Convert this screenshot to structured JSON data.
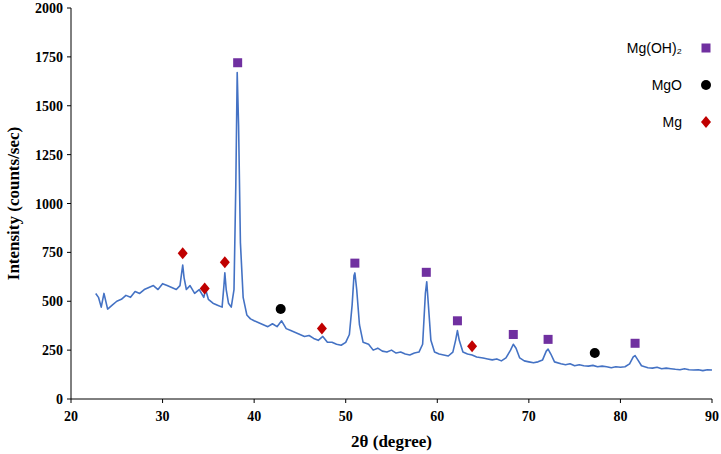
{
  "chart_data": {
    "type": "line",
    "x_label": "2θ (degree)",
    "y_label": "Intensity (counts/sec)",
    "xlim": [
      20,
      90
    ],
    "xticks": [
      20,
      30,
      40,
      50,
      60,
      70,
      80,
      90
    ],
    "ylim": [
      0,
      2000
    ],
    "yticks": [
      0,
      250,
      500,
      750,
      1000,
      1250,
      1500,
      1750,
      2000
    ],
    "grid": false,
    "legend": "top-right",
    "series": [
      {
        "type": "line",
        "color": "#4472c4",
        "line_style": "solid",
        "x": [
          22.7,
          23.0,
          23.3,
          23.6,
          24.0,
          24.5,
          25.0,
          25.5,
          26.0,
          26.5,
          27.0,
          27.5,
          28.0,
          28.5,
          29.0,
          29.5,
          30.0,
          30.5,
          31.0,
          31.5,
          31.9,
          32.1,
          32.2,
          32.35,
          32.6,
          33.0,
          33.5,
          34.0,
          34.5,
          34.7,
          35.0,
          35.5,
          36.0,
          36.5,
          36.7,
          36.8,
          36.95,
          37.2,
          37.5,
          37.8,
          38.0,
          38.15,
          38.3,
          38.5,
          38.8,
          39.2,
          39.6,
          40.0,
          40.5,
          41.0,
          41.5,
          42.0,
          42.5,
          43.0,
          43.5,
          44.0,
          44.5,
          45.0,
          45.5,
          46.0,
          46.5,
          47.0,
          47.5,
          48.0,
          48.5,
          49.0,
          49.5,
          50.0,
          50.4,
          50.7,
          50.9,
          51.0,
          51.2,
          51.5,
          51.9,
          52.5,
          53.0,
          53.5,
          54.0,
          54.5,
          55.0,
          55.5,
          56.0,
          56.5,
          57.0,
          57.5,
          58.0,
          58.4,
          58.7,
          58.85,
          59.0,
          59.3,
          59.7,
          60.2,
          60.7,
          61.2,
          61.7,
          62.0,
          62.2,
          62.4,
          62.8,
          63.3,
          63.8,
          64.3,
          65.0,
          65.5,
          66.0,
          66.5,
          67.0,
          67.5,
          68.0,
          68.3,
          68.6,
          69.0,
          69.5,
          70.0,
          70.5,
          71.0,
          71.5,
          71.9,
          72.1,
          72.4,
          72.8,
          73.5,
          74.0,
          74.5,
          75.0,
          75.5,
          76.0,
          76.5,
          77.0,
          77.5,
          78.0,
          78.5,
          79.0,
          79.5,
          80.0,
          80.5,
          81.0,
          81.4,
          81.6,
          81.9,
          82.3,
          83.0,
          83.5,
          84.0,
          84.5,
          85.0,
          85.5,
          86.0,
          86.5,
          87.0,
          87.5,
          88.0,
          88.5,
          89.0,
          89.5,
          90.0
        ],
        "values": [
          540,
          520,
          470,
          540,
          460,
          480,
          500,
          510,
          530,
          520,
          550,
          540,
          560,
          570,
          580,
          560,
          590,
          580,
          570,
          560,
          580,
          650,
          685,
          620,
          560,
          580,
          540,
          560,
          520,
          560,
          510,
          490,
          480,
          470,
          580,
          645,
          560,
          490,
          470,
          560,
          1100,
          1670,
          1400,
          800,
          520,
          430,
          410,
          400,
          390,
          380,
          370,
          385,
          370,
          400,
          360,
          350,
          340,
          330,
          320,
          325,
          310,
          300,
          320,
          290,
          290,
          280,
          275,
          290,
          330,
          480,
          630,
          645,
          560,
          380,
          290,
          280,
          250,
          260,
          245,
          240,
          250,
          235,
          240,
          230,
          225,
          235,
          240,
          280,
          540,
          600,
          500,
          300,
          240,
          230,
          225,
          220,
          240,
          300,
          350,
          300,
          240,
          230,
          225,
          215,
          210,
          205,
          200,
          205,
          195,
          210,
          250,
          280,
          260,
          210,
          195,
          190,
          185,
          190,
          200,
          245,
          255,
          230,
          190,
          180,
          175,
          180,
          170,
          175,
          170,
          168,
          172,
          165,
          168,
          165,
          160,
          165,
          162,
          165,
          180,
          215,
          222,
          200,
          170,
          160,
          158,
          162,
          155,
          158,
          155,
          152,
          150,
          155,
          150,
          148,
          150,
          145,
          150,
          148
        ]
      },
      {
        "type": "scatter",
        "name": "Mg(OH)₂",
        "color": "#7030a0",
        "marker": "square",
        "x": [
          38.2,
          51.0,
          58.8,
          62.2,
          68.3,
          72.1,
          81.6
        ],
        "values": [
          1720,
          695,
          648,
          400,
          330,
          305,
          285
        ]
      },
      {
        "type": "scatter",
        "name": "MgO",
        "color": "#000000",
        "marker": "circle",
        "x": [
          42.9,
          77.2
        ],
        "values": [
          460,
          235
        ]
      },
      {
        "type": "scatter",
        "name": "Mg",
        "color": "#c00000",
        "marker": "diamond",
        "x": [
          32.2,
          34.6,
          36.8,
          47.4,
          63.8
        ],
        "values": [
          745,
          565,
          700,
          360,
          270
        ]
      }
    ]
  }
}
